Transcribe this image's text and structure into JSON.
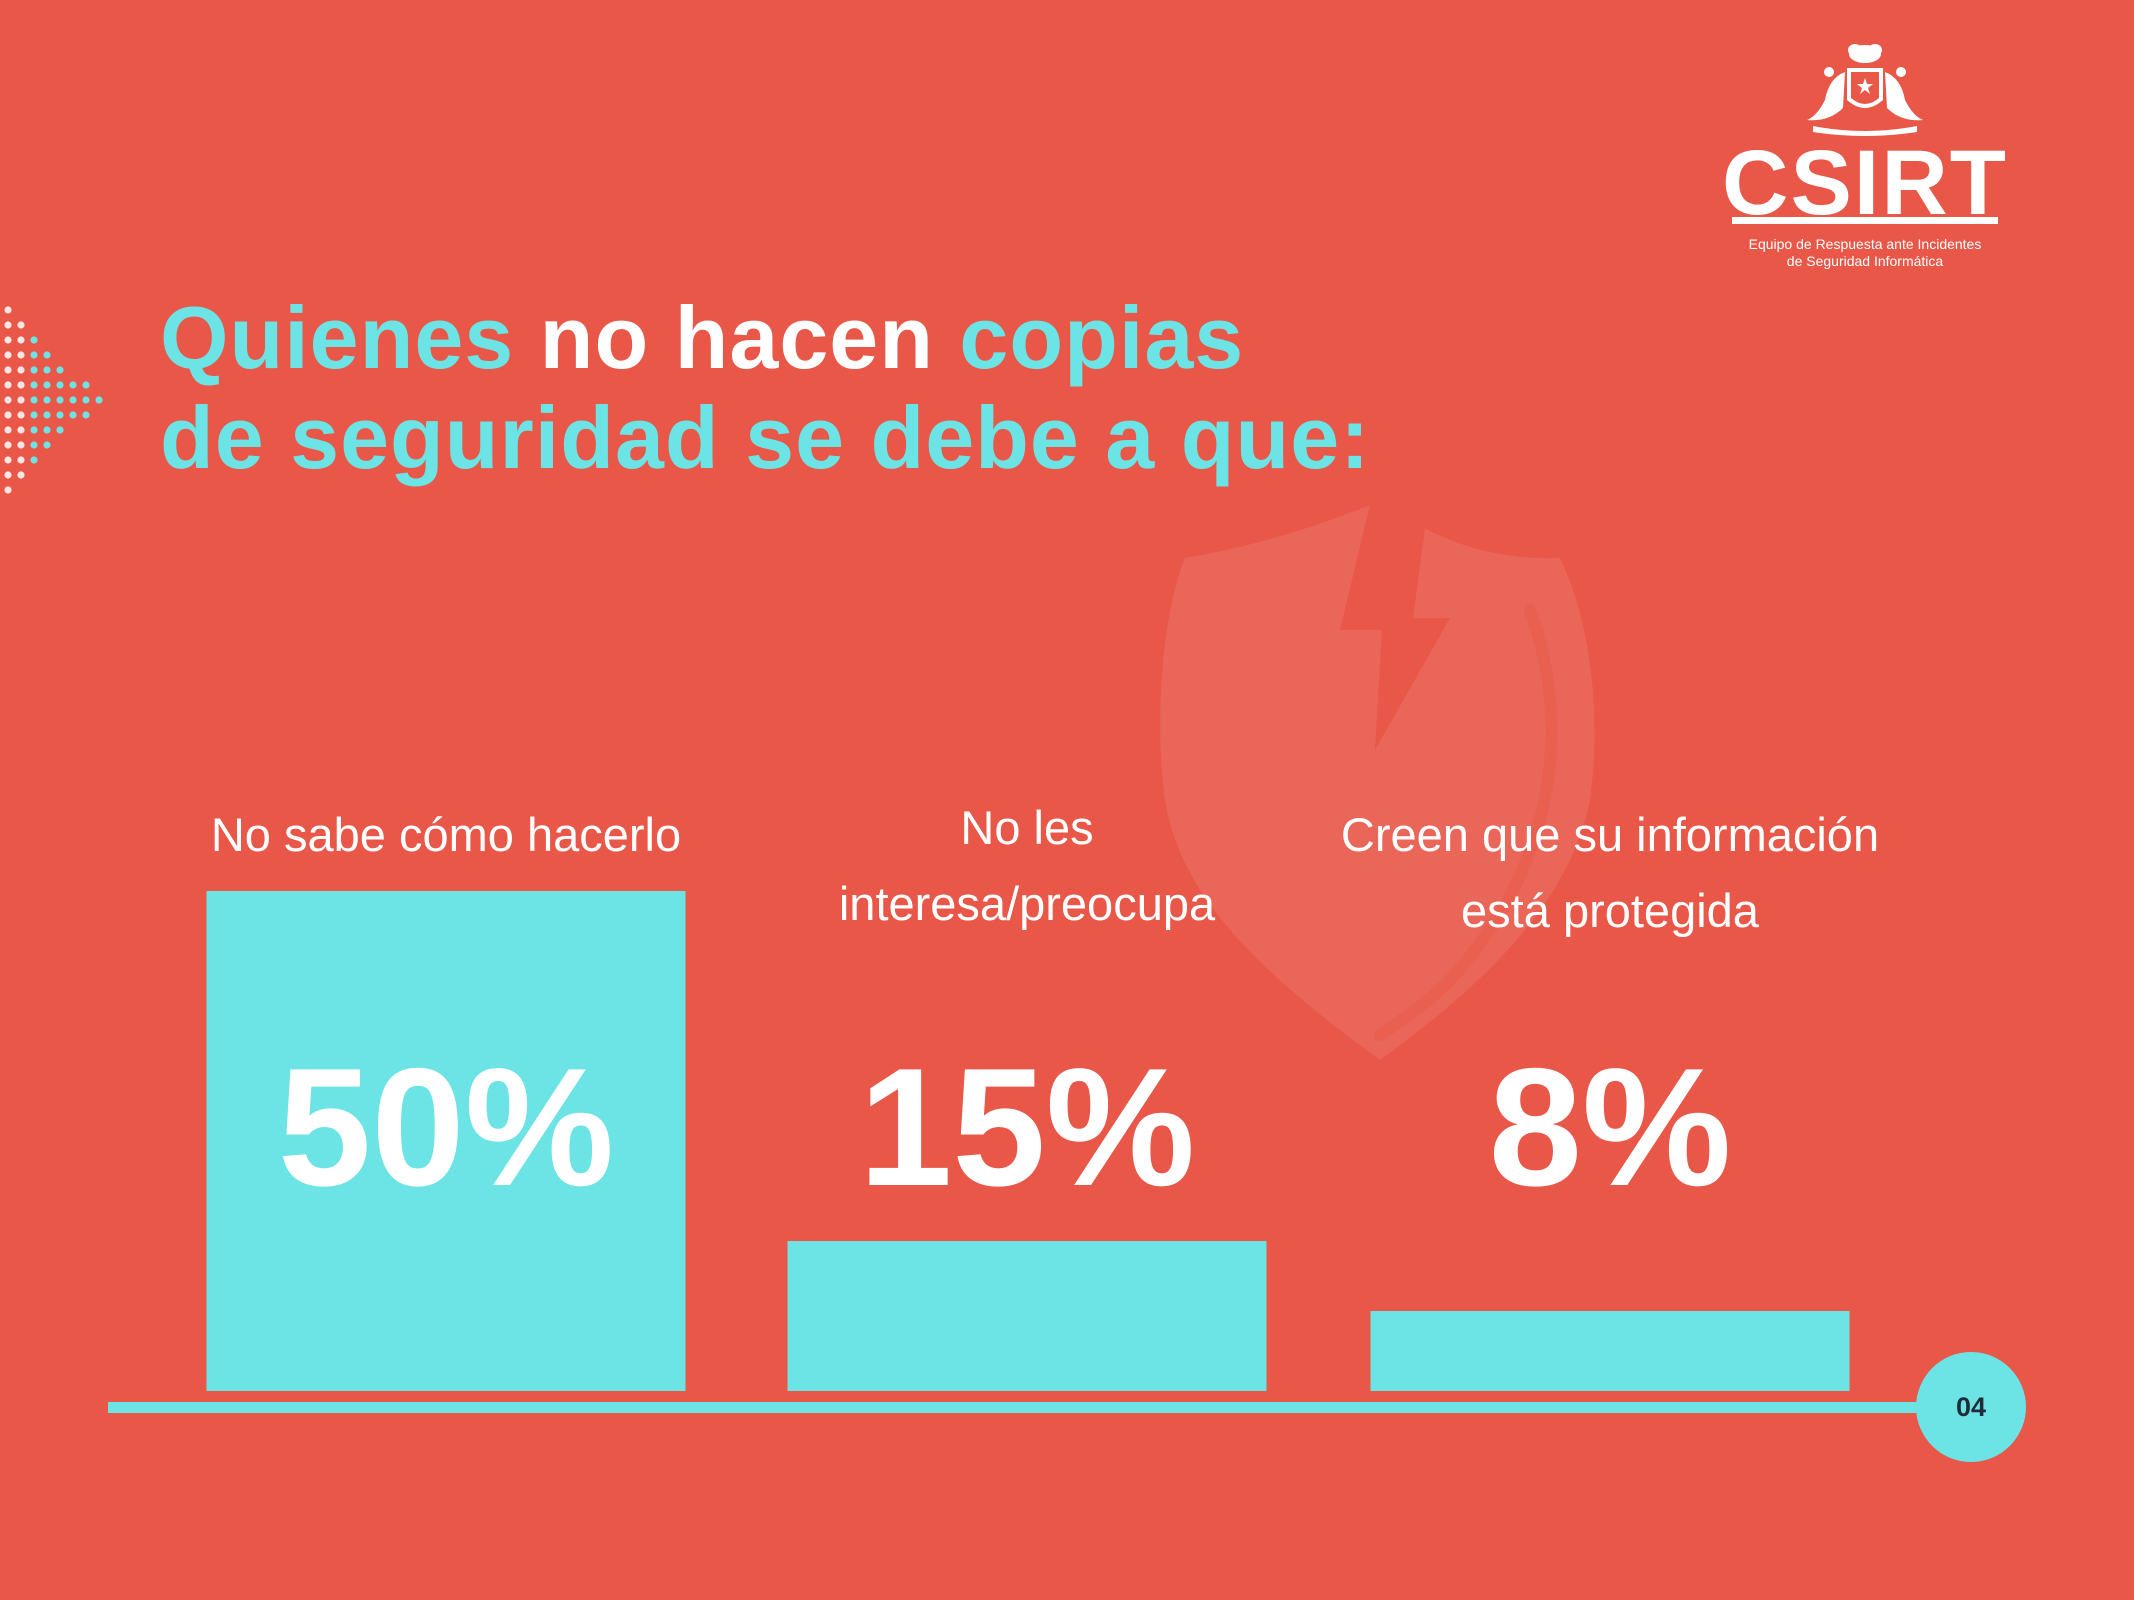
{
  "slide": {
    "title_parts": [
      "Quienes",
      " no hacen",
      " copias",
      "de seguridad se debe a que:"
    ],
    "page_number": "04",
    "background_color": "#e85748",
    "accent_color": "#6ce3e4"
  },
  "logo": {
    "wordmark": "CSIRT",
    "subtitle_line1": "Equipo de Respuesta ante Incidentes",
    "subtitle_line2": "de Seguridad Informática",
    "emblem": "chilean-coat-of-arms-icon"
  },
  "decorations": {
    "watermark_icon": "broken-shield-icon",
    "left_pattern_icon": "dotted-arrow-icon"
  },
  "chart_data": {
    "type": "bar",
    "title": "Quienes no hacen copias de seguridad se debe a que:",
    "categories": [
      [
        "No sabe cómo hacerlo"
      ],
      [
        "No les",
        "interesa/preocupa"
      ],
      [
        "Creen que su información",
        "está protegida"
      ]
    ],
    "values": [
      50,
      15,
      8
    ],
    "value_labels": [
      "50%",
      "15%",
      "8%"
    ],
    "ylim": [
      0,
      50
    ],
    "grid": false,
    "legend": false,
    "bar_color": "#6ce3e4",
    "label_color": "#ffffff"
  }
}
